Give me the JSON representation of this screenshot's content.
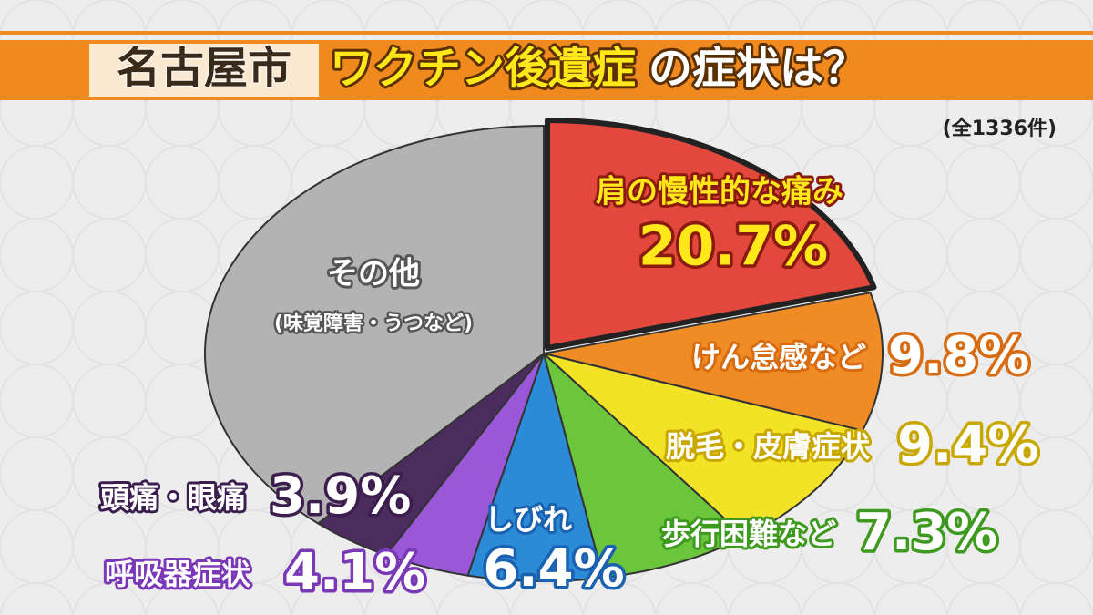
{
  "chart_data": {
    "type": "pie",
    "title_parts": [
      "名古屋市",
      "ワクチン後遺症",
      "の症状は？"
    ],
    "subtitle": "(全1336件)",
    "categories": [
      "肩の慢性的な痛み",
      "けん怠感など",
      "脱毛・皮膚症状",
      "歩行困難など",
      "しびれ",
      "呼吸器症状",
      "頭痛・眼痛",
      "その他"
    ],
    "values": [
      20.7,
      9.8,
      9.4,
      7.3,
      6.4,
      4.1,
      3.9,
      38.4
    ],
    "value_labels": [
      "20.7%",
      "9.8%",
      "9.4%",
      "7.3%",
      "6.4%",
      "4.1%",
      "3.9%",
      null
    ],
    "colors": [
      "#e2483c",
      "#ef8c26",
      "#f3e326",
      "#6cc63c",
      "#2b8bd6",
      "#9a58d8",
      "#4b2c5e",
      "#b3b3b3"
    ],
    "annotations": [
      "(味覚障害・うつなど)"
    ]
  }
}
